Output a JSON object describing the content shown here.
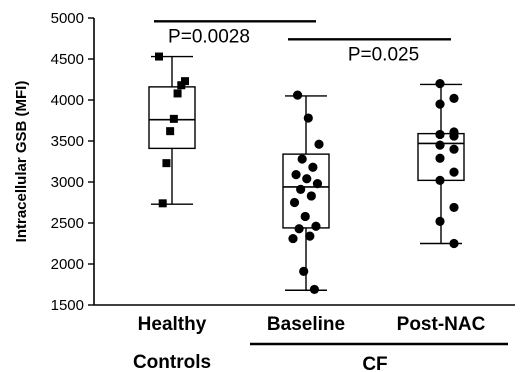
{
  "chart_data": {
    "type": "box",
    "ylabel": "Intracellular GSB (MFI)",
    "ylim": [
      1500,
      5000
    ],
    "yticks": [
      1500,
      2000,
      2500,
      3000,
      3500,
      4000,
      4500,
      5000
    ],
    "ytick_labels": [
      "1500",
      "2000",
      "2500",
      "3000",
      "3500",
      "4000",
      "4500",
      "5000"
    ],
    "categories": [
      "Healthy",
      "Baseline",
      "Post-NAC"
    ],
    "subgroup_labels": {
      "controls": "Controls",
      "cf": "CF"
    },
    "colors": {
      "axis": "#000000",
      "marker": "#000000",
      "box": "#000000"
    },
    "boxes": [
      {
        "category": "Healthy",
        "marker": "square",
        "whisker_low": 2730,
        "q1": 3410,
        "median": 3760,
        "q3": 4160,
        "whisker_high": 4530,
        "points": [
          4530,
          4230,
          4180,
          4080,
          3770,
          3620,
          3230,
          2740
        ]
      },
      {
        "category": "Baseline",
        "marker": "circle",
        "whisker_low": 1680,
        "q1": 2440,
        "median": 2940,
        "q3": 3340,
        "whisker_high": 4050,
        "points": [
          4060,
          3780,
          3460,
          3280,
          3180,
          3090,
          3040,
          2980,
          2910,
          2830,
          2750,
          2580,
          2460,
          2430,
          2340,
          2310,
          1910,
          1690
        ]
      },
      {
        "category": "Post-NAC",
        "marker": "circle",
        "whisker_low": 2250,
        "q1": 3020,
        "median": 3470,
        "q3": 3590,
        "whisker_high": 4190,
        "points": [
          4200,
          4020,
          3950,
          3610,
          3580,
          3560,
          3450,
          3400,
          3290,
          3120,
          3020,
          2690,
          2520,
          2250
        ]
      }
    ],
    "comparisons": [
      {
        "from": "Healthy",
        "to": "Baseline",
        "label": "P=0.0028",
        "y": 4960
      },
      {
        "from": "Baseline",
        "to": "Post-NAC",
        "label": "P=0.025",
        "y": 4740
      }
    ]
  }
}
